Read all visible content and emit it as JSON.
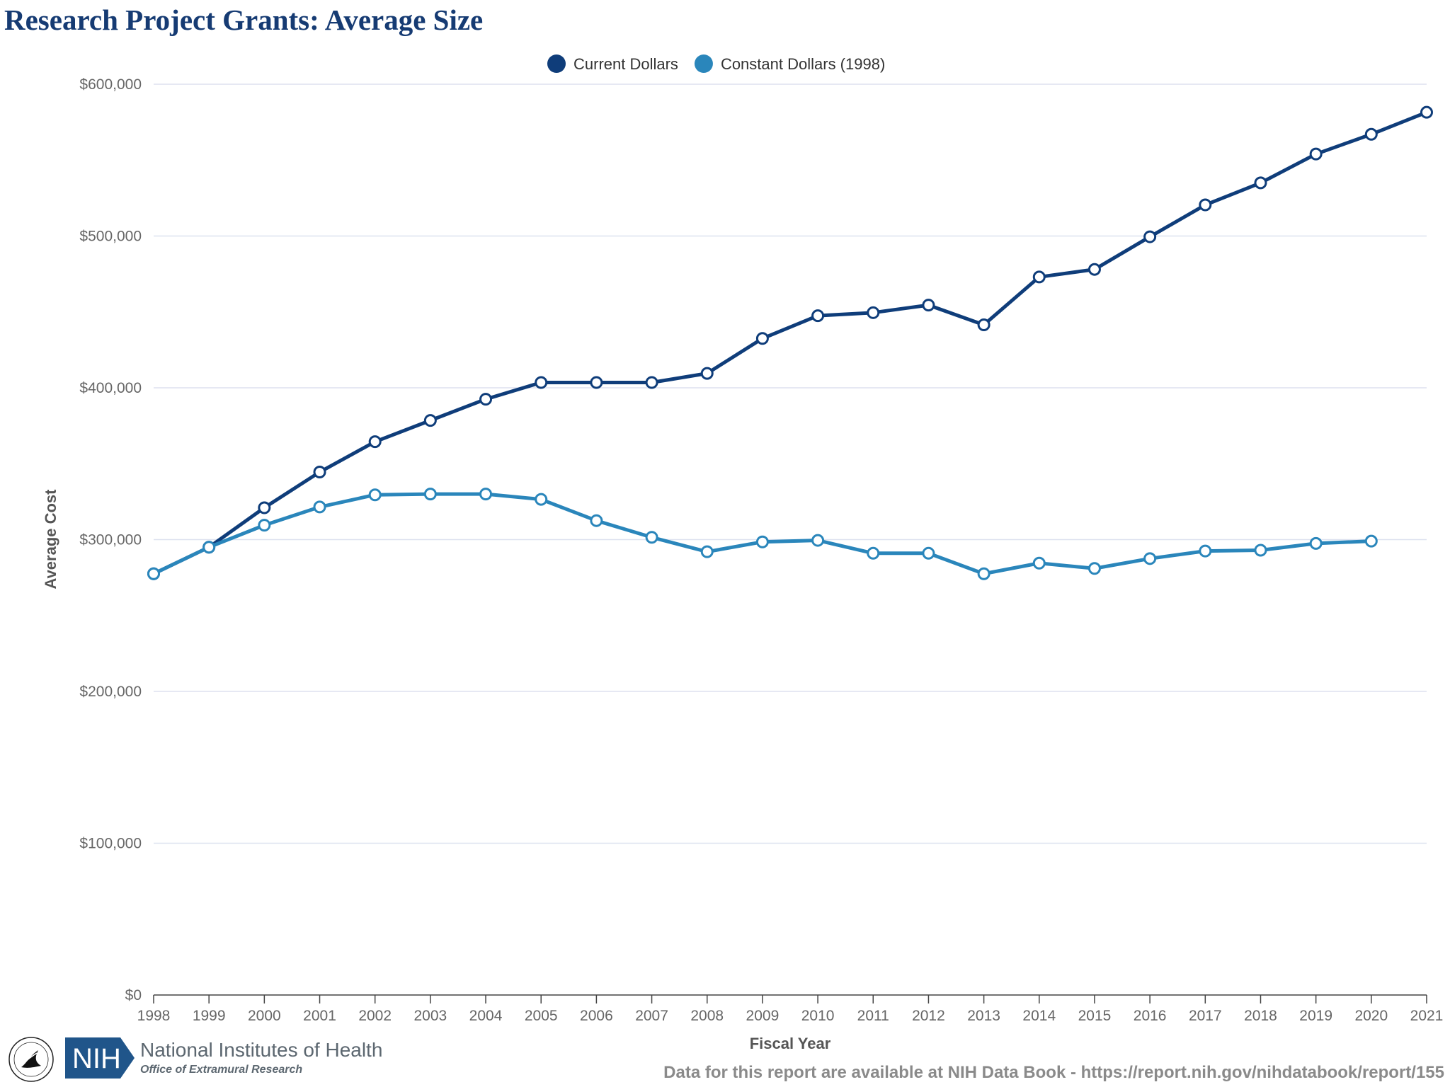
{
  "title": "Research Project Grants: Average Size",
  "footer": {
    "source_text": "Data for this report are available at NIH Data Book - https://report.nih.gov/nihdatabook/report/155",
    "org_name": "National Institutes of Health",
    "office_name": "Office of Extramural Research",
    "logo_text": "NIH"
  },
  "colors": {
    "current": "#0f3d7a",
    "constant": "#2a86bb",
    "title": "#163b73"
  },
  "chart_data": {
    "type": "line",
    "title": "Research Project Grants: Average Size",
    "xlabel": "Fiscal Year",
    "ylabel": "Average Cost",
    "ylim": [
      0,
      600000
    ],
    "y_ticks": [
      0,
      100000,
      200000,
      300000,
      400000,
      500000,
      600000
    ],
    "y_tick_labels": [
      "$0",
      "$100,000",
      "$200,000",
      "$300,000",
      "$400,000",
      "$500,000",
      "$600,000"
    ],
    "grid": true,
    "legend_position": "top-center",
    "x": [
      "1998",
      "1999",
      "2000",
      "2001",
      "2002",
      "2003",
      "2004",
      "2005",
      "2006",
      "2007",
      "2008",
      "2009",
      "2010",
      "2011",
      "2012",
      "2013",
      "2014",
      "2015",
      "2016",
      "2017",
      "2018",
      "2019",
      "2020",
      "2021"
    ],
    "series": [
      {
        "name": "Current Dollars",
        "color": "#0f3d7a",
        "values": [
          277500,
          295000,
          321000,
          344500,
          364500,
          378500,
          392500,
          403500,
          403500,
          403500,
          409500,
          432500,
          447500,
          449500,
          454500,
          441500,
          473000,
          478000,
          499500,
          520500,
          535000,
          554000,
          567000,
          581500
        ]
      },
      {
        "name": "Constant Dollars (1998)",
        "color": "#2a86bb",
        "values": [
          277500,
          295000,
          309500,
          321500,
          329500,
          330000,
          330000,
          326500,
          312500,
          301500,
          292000,
          298500,
          299500,
          291000,
          291000,
          277500,
          284500,
          281000,
          287500,
          292500,
          293000,
          297500,
          299000,
          null
        ]
      }
    ]
  }
}
